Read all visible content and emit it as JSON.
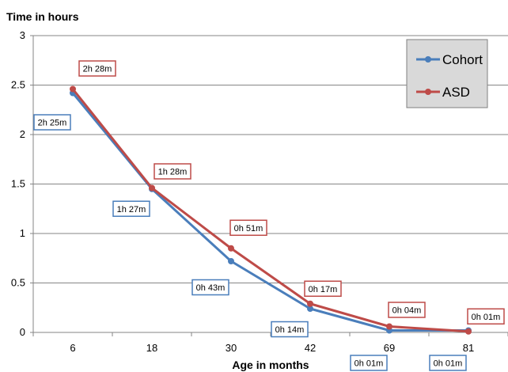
{
  "chart_data": {
    "type": "line",
    "title": "",
    "ylabel": "Time in hours",
    "xlabel": "Age in months",
    "categories": [
      "6",
      "18",
      "30",
      "42",
      "69",
      "81"
    ],
    "ylim": [
      0,
      3
    ],
    "yticks": [
      "0",
      "0.5",
      "1",
      "1.5",
      "2",
      "2.5",
      "3"
    ],
    "grid": true,
    "legend": "top-right",
    "series": [
      {
        "name": "Cohort",
        "color": "#4a7ebb",
        "values": [
          2.42,
          1.45,
          0.72,
          0.24,
          0.02,
          0.02
        ],
        "labels": [
          "2h 25m",
          "1h 27m",
          "0h 43m",
          "0h 14m",
          "0h 01m",
          "0h 01m"
        ]
      },
      {
        "name": "ASD",
        "color": "#be4b48",
        "values": [
          2.46,
          1.46,
          0.85,
          0.29,
          0.06,
          0.01
        ],
        "labels": [
          "2h 28m",
          "1h 28m",
          "0h 51m",
          "0h 17m",
          "0h 04m",
          "0h 01m"
        ]
      }
    ]
  }
}
